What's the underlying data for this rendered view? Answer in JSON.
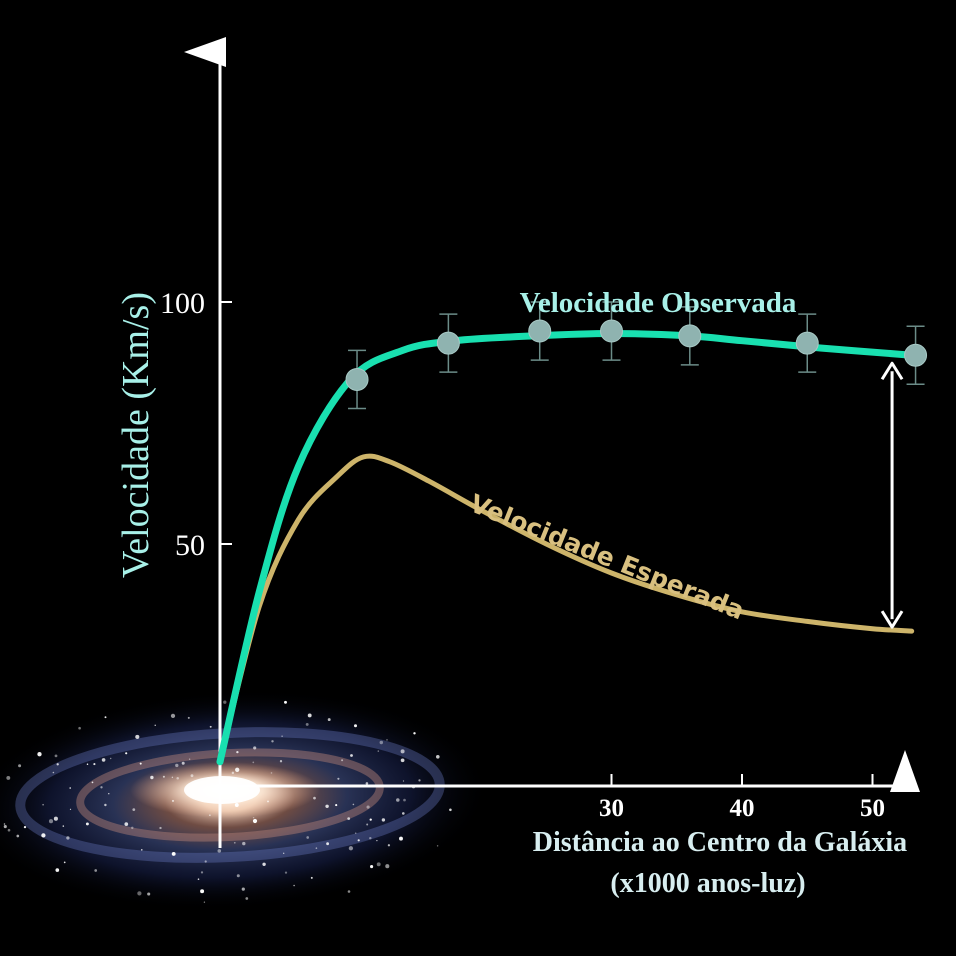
{
  "chart_data": {
    "type": "line",
    "title": "",
    "xlabel_line1": "Distância ao Centro da Galáxia",
    "xlabel_line2": "(x1000 anos-luz)",
    "ylabel": "Velocidade (Km/s)",
    "xlim": [
      0,
      54
    ],
    "ylim": [
      0,
      135
    ],
    "x_ticks": [
      30,
      40,
      50
    ],
    "y_ticks": [
      50,
      100
    ],
    "grid": false,
    "series": [
      {
        "name": "Velocidade Observada",
        "color": "#19e0b0",
        "label_color": "#a8f0e8",
        "curve": [
          [
            0,
            5
          ],
          [
            3,
            40
          ],
          [
            6,
            66
          ],
          [
            10,
            84
          ],
          [
            14,
            90
          ],
          [
            18,
            92
          ],
          [
            24,
            93
          ],
          [
            30,
            93.5
          ],
          [
            36,
            93
          ],
          [
            40,
            92
          ],
          [
            46,
            90.5
          ],
          [
            53,
            89
          ]
        ],
        "points": [
          {
            "x": 10.5,
            "y": 84,
            "err": 6
          },
          {
            "x": 17.5,
            "y": 91.5,
            "err": 6
          },
          {
            "x": 24.5,
            "y": 94,
            "err": 6
          },
          {
            "x": 30,
            "y": 94,
            "err": 6
          },
          {
            "x": 36,
            "y": 93,
            "err": 6
          },
          {
            "x": 45,
            "y": 91.5,
            "err": 6
          },
          {
            "x": 53.3,
            "y": 89,
            "err": 6
          }
        ]
      },
      {
        "name": "Velocidade Esperada",
        "color": "#cdb46a",
        "label_color": "#d9c080",
        "curve": [
          [
            0,
            5
          ],
          [
            3,
            37
          ],
          [
            6,
            55
          ],
          [
            9,
            64
          ],
          [
            11,
            68
          ],
          [
            13,
            67
          ],
          [
            16,
            63
          ],
          [
            20,
            57
          ],
          [
            25,
            50
          ],
          [
            30,
            44
          ],
          [
            35,
            39.5
          ],
          [
            40,
            36
          ],
          [
            45,
            34
          ],
          [
            50,
            32.5
          ],
          [
            53,
            32
          ]
        ]
      }
    ],
    "annotations": [
      {
        "type": "double-arrow",
        "x": 51.5,
        "y_from": 89,
        "y_to": 32
      }
    ]
  }
}
